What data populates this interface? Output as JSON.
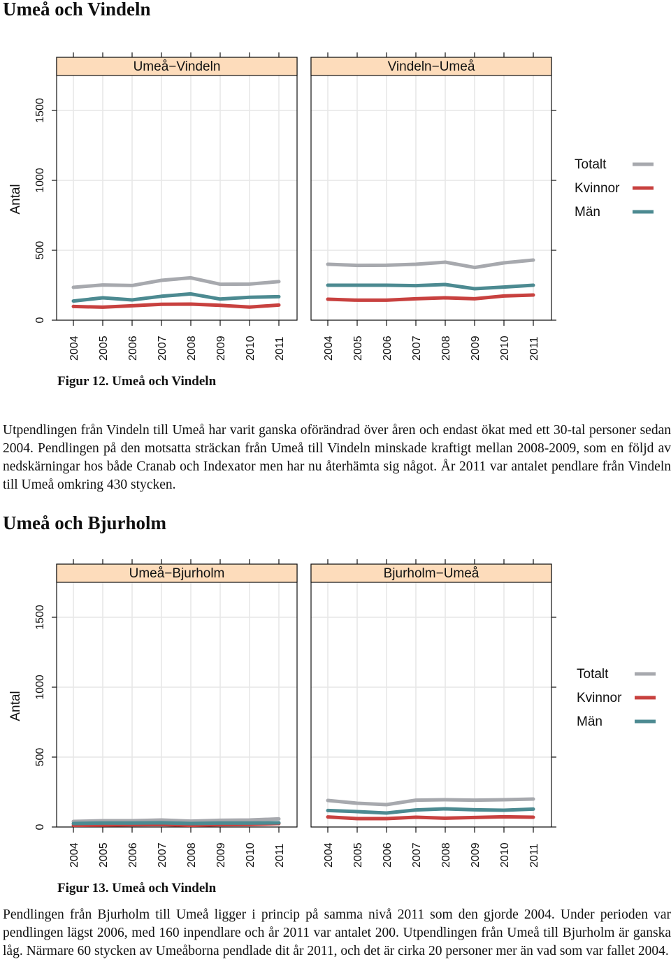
{
  "section1": {
    "heading": "Umeå och Vindeln",
    "caption": "Figur 12. Umeå och Vindeln",
    "paragraph": "Utpendlingen från Vindeln till Umeå har varit ganska oförändrad över åren och endast ökat med ett 30-tal personer sedan 2004. Pendlingen på den motsatta sträckan från Umeå till Vindeln minskade kraftigt mellan 2008-2009, som en följd av nedskärningar hos både Cranab och Indexator  men har nu återhämta sig något. År 2011 var antalet pendlare från Vindeln till Umeå omkring 430 stycken."
  },
  "section2": {
    "heading": "Umeå och Bjurholm",
    "caption": "Figur 13. Umeå och Vindeln",
    "paragraph": "Pendlingen från Bjurholm till Umeå ligger i princip på samma nivå 2011 som den gjorde 2004. Under perioden var pendlingen lägst 2006, med 160 inpendlare och år 2011 var antalet 200. Utpendlingen från Umeå till Bjurholm är ganska låg. Närmare 60 stycken av Umeåborna pendlade dit år 2011, och det är cirka 20 personer mer än vad som var fallet 2004."
  },
  "colors": {
    "Totalt": "#a7a9ae",
    "Kvinnor": "#c8413f",
    "Män": "#4c8a91",
    "strip": "#fddcbb",
    "grid": "#e6e6e6"
  },
  "chart_data": [
    {
      "type": "line",
      "ylabel": "Antal",
      "ylim": [
        0,
        1750
      ],
      "yticks": [
        0,
        500,
        1000,
        1500
      ],
      "x": [
        2004,
        2005,
        2006,
        2007,
        2008,
        2009,
        2010,
        2011
      ],
      "legend": [
        "Totalt",
        "Kvinnor",
        "Män"
      ],
      "legend_position": "right",
      "grid": true,
      "panels": [
        {
          "title": "Umeå−Vindeln",
          "series": [
            {
              "name": "Totalt",
              "values": [
                235,
                252,
                248,
                285,
                303,
                257,
                258,
                276
              ]
            },
            {
              "name": "Kvinnor",
              "values": [
                98,
                93,
                103,
                114,
                115,
                106,
                94,
                108
              ]
            },
            {
              "name": "Män",
              "values": [
                137,
                160,
                145,
                171,
                188,
                151,
                164,
                168
              ]
            }
          ]
        },
        {
          "title": "Vindeln−Umeå",
          "series": [
            {
              "name": "Totalt",
              "values": [
                400,
                392,
                393,
                400,
                415,
                377,
                410,
                430
              ]
            },
            {
              "name": "Kvinnor",
              "values": [
                150,
                143,
                143,
                153,
                160,
                153,
                173,
                180
              ]
            },
            {
              "name": "Män",
              "values": [
                250,
                250,
                250,
                247,
                255,
                225,
                237,
                250
              ]
            }
          ]
        }
      ]
    },
    {
      "type": "line",
      "ylabel": "Antal",
      "ylim": [
        0,
        1750
      ],
      "yticks": [
        0,
        500,
        1000,
        1500
      ],
      "x": [
        2004,
        2005,
        2006,
        2007,
        2008,
        2009,
        2010,
        2011
      ],
      "legend": [
        "Totalt",
        "Kvinnor",
        "Män"
      ],
      "legend_position": "right",
      "grid": true,
      "panels": [
        {
          "title": "Umeå−Bjurholm",
          "series": [
            {
              "name": "Totalt",
              "values": [
                40,
                45,
                45,
                50,
                42,
                48,
                50,
                58
              ]
            },
            {
              "name": "Kvinnor",
              "values": [
                12,
                14,
                16,
                18,
                12,
                17,
                18,
                25
              ]
            },
            {
              "name": "Män",
              "values": [
                25,
                28,
                28,
                30,
                25,
                28,
                28,
                30
              ]
            }
          ]
        },
        {
          "title": "Bjurholm−Umeå",
          "series": [
            {
              "name": "Totalt",
              "values": [
                190,
                170,
                160,
                192,
                195,
                192,
                195,
                200
              ]
            },
            {
              "name": "Kvinnor",
              "values": [
                72,
                60,
                60,
                70,
                63,
                68,
                73,
                70
              ]
            },
            {
              "name": "Män",
              "values": [
                118,
                110,
                100,
                122,
                130,
                123,
                120,
                128
              ]
            }
          ]
        }
      ]
    }
  ]
}
